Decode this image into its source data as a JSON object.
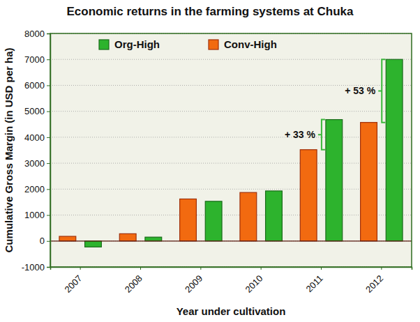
{
  "chart_data": {
    "type": "bar",
    "title": "Economic returns in the farming systems at Chuka",
    "x_label": "Year under cultivation",
    "y_label": "Cumulative Gross Margin (in USD per ha)",
    "categories": [
      "2007",
      "2008",
      "2009",
      "2010",
      "2011",
      "2012"
    ],
    "series": [
      {
        "name": "Org-High",
        "color": "#2db32d",
        "values": [
          -230,
          150,
          1530,
          1930,
          4680,
          7000
        ]
      },
      {
        "name": "Conv-High",
        "color": "#f26a10",
        "values": [
          180,
          280,
          1620,
          1870,
          3520,
          4570
        ]
      }
    ],
    "ylim": [
      -1000,
      8000
    ],
    "yticks": [
      -1000,
      0,
      1000,
      2000,
      3000,
      4000,
      5000,
      6000,
      7000,
      8000
    ],
    "grid": true,
    "legend": "top",
    "annotations": [
      {
        "text": "+ 33 %",
        "category": "2011"
      },
      {
        "text": "+ 53 %",
        "category": "2012"
      }
    ]
  }
}
